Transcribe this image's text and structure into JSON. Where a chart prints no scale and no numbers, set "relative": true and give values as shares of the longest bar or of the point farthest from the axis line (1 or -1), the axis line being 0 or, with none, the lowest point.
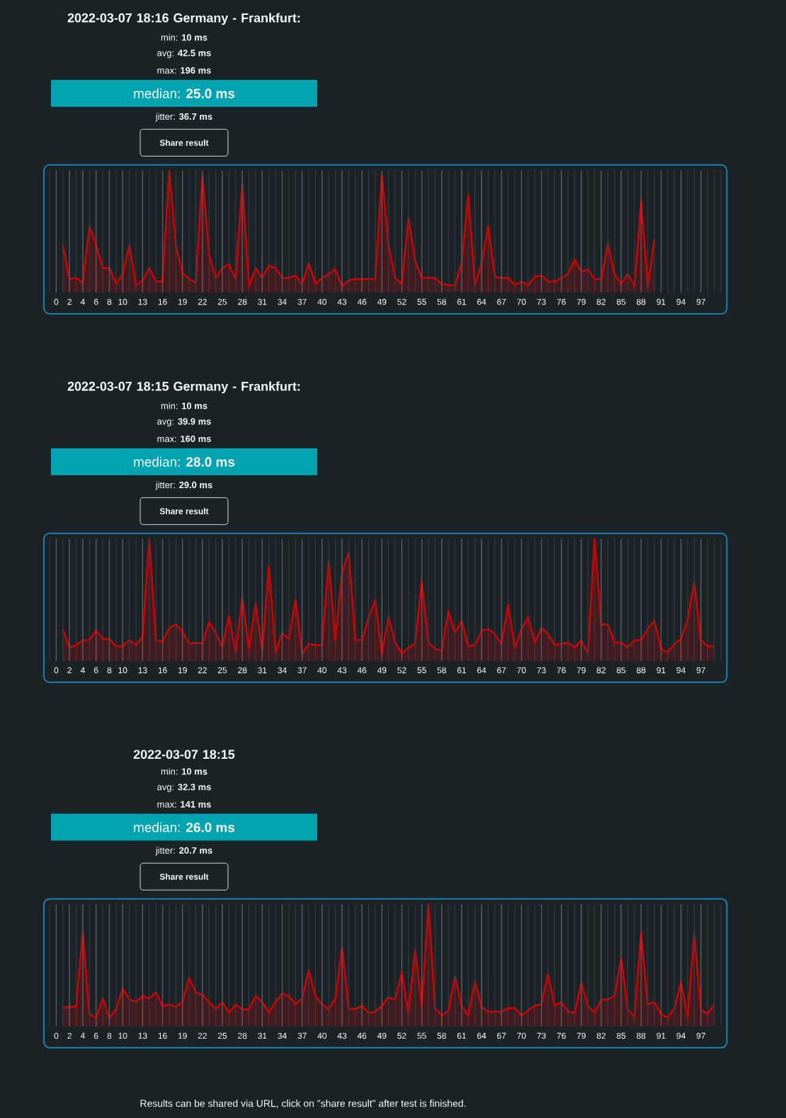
{
  "chart_data": [
    {
      "type": "area",
      "title": "2022-03-07 18:16 Germany - Frankfurt:",
      "annotations": [
        "min: **10 ms**",
        "avg: **42.5 ms**",
        "max: **196 ms**",
        "median: **25.0 ms**",
        "jitter: **36.7 ms**",
        "Share result"
      ],
      "relative": true,
      "grid": "x",
      "xlim": [
        -1,
        100
      ],
      "xticks": [
        0,
        2,
        4,
        6,
        8,
        10,
        13,
        16,
        19,
        22,
        25,
        28,
        31,
        34,
        37,
        40,
        43,
        46,
        49,
        52,
        55,
        58,
        61,
        64,
        67,
        70,
        73,
        76,
        79,
        82,
        85,
        88,
        91,
        94,
        97
      ],
      "x": [
        1,
        2,
        3,
        4,
        5,
        6,
        7,
        8,
        9,
        10,
        11,
        12,
        13,
        14,
        15,
        16,
        17,
        18,
        19,
        20,
        21,
        22,
        23,
        24,
        25,
        26,
        27,
        28,
        29,
        30,
        31,
        32,
        33,
        34,
        35,
        36,
        37,
        38,
        39,
        40,
        41,
        42,
        43,
        44,
        45,
        46,
        47,
        48,
        49,
        50,
        51,
        52,
        53,
        54,
        55,
        56,
        57,
        58,
        59,
        60,
        61,
        62,
        63,
        64,
        65,
        66,
        67,
        68,
        69,
        70,
        71,
        72,
        73,
        74,
        75,
        76,
        77,
        78,
        79,
        80,
        81,
        82,
        83,
        84,
        85,
        86,
        87,
        88,
        89,
        90
      ],
      "series": [
        {
          "color": "#d40000",
          "values": [
            0.39,
            0.11,
            0.12,
            0.08,
            0.54,
            0.39,
            0.2,
            0.2,
            0.07,
            0.15,
            0.39,
            0.06,
            0.1,
            0.2,
            0.09,
            0.09,
            1.0,
            0.39,
            0.16,
            0.11,
            0.08,
            0.96,
            0.31,
            0.12,
            0.2,
            0.23,
            0.11,
            0.89,
            0.05,
            0.2,
            0.12,
            0.22,
            0.2,
            0.12,
            0.12,
            0.14,
            0.07,
            0.24,
            0.07,
            0.12,
            0.15,
            0.19,
            0.05,
            0.1,
            0.11,
            0.11,
            0.11,
            0.11,
            0.96,
            0.39,
            0.12,
            0.07,
            0.61,
            0.26,
            0.12,
            0.12,
            0.12,
            0.07,
            0.06,
            0.06,
            0.24,
            0.8,
            0.06,
            0.24,
            0.54,
            0.13,
            0.12,
            0.12,
            0.06,
            0.09,
            0.06,
            0.13,
            0.14,
            0.09,
            0.09,
            0.12,
            0.15,
            0.27,
            0.17,
            0.19,
            0.11,
            0.11,
            0.4,
            0.15,
            0.07,
            0.15,
            0.05,
            0.75,
            0.05,
            0.44
          ]
        }
      ]
    },
    {
      "type": "area",
      "title": "2022-03-07 18:15 Germany - Frankfurt:",
      "annotations": [
        "min: **10 ms**",
        "avg: **39.9 ms**",
        "max: **160 ms**",
        "median: **28.0 ms**",
        "jitter: **29.0 ms**",
        "Share result"
      ],
      "relative": true,
      "grid": "x",
      "xlim": [
        -1,
        100
      ],
      "xticks": [
        0,
        2,
        4,
        6,
        8,
        10,
        13,
        16,
        19,
        22,
        25,
        28,
        31,
        34,
        37,
        40,
        43,
        46,
        49,
        52,
        55,
        58,
        61,
        64,
        67,
        70,
        73,
        76,
        79,
        82,
        85,
        88,
        91,
        94,
        97
      ],
      "x": [
        1,
        2,
        3,
        4,
        5,
        6,
        7,
        8,
        9,
        10,
        11,
        12,
        13,
        14,
        15,
        16,
        17,
        18,
        19,
        20,
        21,
        22,
        23,
        24,
        25,
        26,
        27,
        28,
        29,
        30,
        31,
        32,
        33,
        34,
        35,
        36,
        37,
        38,
        39,
        40,
        41,
        42,
        43,
        44,
        45,
        46,
        47,
        48,
        49,
        50,
        51,
        52,
        53,
        54,
        55,
        56,
        57,
        58,
        59,
        60,
        61,
        62,
        63,
        64,
        65,
        66,
        67,
        68,
        69,
        70,
        71,
        72,
        73,
        74,
        75,
        76,
        77,
        78,
        79,
        80,
        81,
        82,
        83,
        84,
        85,
        86,
        87,
        88,
        89,
        90,
        91,
        92,
        93,
        94,
        95,
        96,
        97,
        98,
        99
      ],
      "series": [
        {
          "color": "#d40000",
          "values": [
            0.26,
            0.11,
            0.13,
            0.17,
            0.17,
            0.25,
            0.18,
            0.18,
            0.12,
            0.12,
            0.17,
            0.13,
            0.2,
            1.0,
            0.17,
            0.16,
            0.27,
            0.3,
            0.24,
            0.14,
            0.15,
            0.14,
            0.32,
            0.23,
            0.11,
            0.37,
            0.07,
            0.52,
            0.1,
            0.47,
            0.08,
            0.78,
            0.07,
            0.23,
            0.18,
            0.5,
            0.06,
            0.14,
            0.13,
            0.13,
            0.82,
            0.17,
            0.72,
            0.89,
            0.17,
            0.17,
            0.35,
            0.5,
            0.06,
            0.36,
            0.15,
            0.06,
            0.11,
            0.14,
            0.65,
            0.15,
            0.1,
            0.08,
            0.41,
            0.23,
            0.33,
            0.12,
            0.13,
            0.25,
            0.26,
            0.22,
            0.14,
            0.46,
            0.1,
            0.26,
            0.36,
            0.15,
            0.27,
            0.22,
            0.13,
            0.14,
            0.15,
            0.11,
            0.17,
            0.06,
            1.0,
            0.3,
            0.3,
            0.15,
            0.15,
            0.11,
            0.17,
            0.17,
            0.26,
            0.33,
            0.1,
            0.07,
            0.14,
            0.18,
            0.34,
            0.65,
            0.17,
            0.12,
            0.12
          ]
        }
      ]
    },
    {
      "type": "area",
      "title": "2022-03-07 18:15",
      "annotations": [
        "min: **10 ms**",
        "avg: **32.3 ms**",
        "max: **141 ms**",
        "median: **26.0 ms**",
        "jitter: **20.7 ms**",
        "Share result",
        "Results can be shared via URL, click on \"share result\" after test is finished."
      ],
      "relative": true,
      "grid": "x",
      "xlim": [
        -1,
        100
      ],
      "xticks": [
        0,
        2,
        4,
        6,
        8,
        10,
        13,
        16,
        19,
        22,
        25,
        28,
        31,
        34,
        37,
        40,
        43,
        46,
        49,
        52,
        55,
        58,
        61,
        64,
        67,
        70,
        73,
        76,
        79,
        82,
        85,
        88,
        91,
        94,
        97
      ],
      "x": [
        1,
        2,
        3,
        4,
        5,
        6,
        7,
        8,
        9,
        10,
        11,
        12,
        13,
        14,
        15,
        16,
        17,
        18,
        19,
        20,
        21,
        22,
        23,
        24,
        25,
        26,
        27,
        28,
        29,
        30,
        31,
        32,
        33,
        34,
        35,
        36,
        37,
        38,
        39,
        40,
        41,
        42,
        43,
        44,
        45,
        46,
        47,
        48,
        49,
        50,
        51,
        52,
        53,
        54,
        55,
        56,
        57,
        58,
        59,
        60,
        61,
        62,
        63,
        64,
        65,
        66,
        67,
        68,
        69,
        70,
        71,
        72,
        73,
        74,
        75,
        76,
        77,
        78,
        79,
        80,
        81,
        82,
        83,
        84,
        85,
        86,
        87,
        88,
        89,
        90,
        91,
        92,
        93,
        94,
        95,
        96,
        97,
        98,
        99
      ],
      "series": [
        {
          "color": "#d40000",
          "values": [
            0.15,
            0.16,
            0.16,
            0.78,
            0.1,
            0.07,
            0.23,
            0.07,
            0.14,
            0.31,
            0.22,
            0.2,
            0.25,
            0.23,
            0.28,
            0.17,
            0.18,
            0.16,
            0.2,
            0.4,
            0.28,
            0.26,
            0.2,
            0.14,
            0.2,
            0.11,
            0.18,
            0.14,
            0.14,
            0.25,
            0.2,
            0.11,
            0.2,
            0.27,
            0.25,
            0.18,
            0.23,
            0.46,
            0.25,
            0.18,
            0.14,
            0.23,
            0.65,
            0.15,
            0.14,
            0.17,
            0.11,
            0.12,
            0.17,
            0.24,
            0.22,
            0.44,
            0.11,
            0.63,
            0.17,
            1.0,
            0.15,
            0.09,
            0.13,
            0.41,
            0.17,
            0.09,
            0.37,
            0.16,
            0.12,
            0.12,
            0.12,
            0.15,
            0.15,
            0.09,
            0.13,
            0.17,
            0.18,
            0.43,
            0.17,
            0.2,
            0.12,
            0.11,
            0.36,
            0.17,
            0.11,
            0.22,
            0.22,
            0.25,
            0.56,
            0.14,
            0.08,
            0.77,
            0.18,
            0.2,
            0.1,
            0.07,
            0.15,
            0.36,
            0.07,
            0.76,
            0.14,
            0.1,
            0.18
          ]
        }
      ]
    }
  ]
}
